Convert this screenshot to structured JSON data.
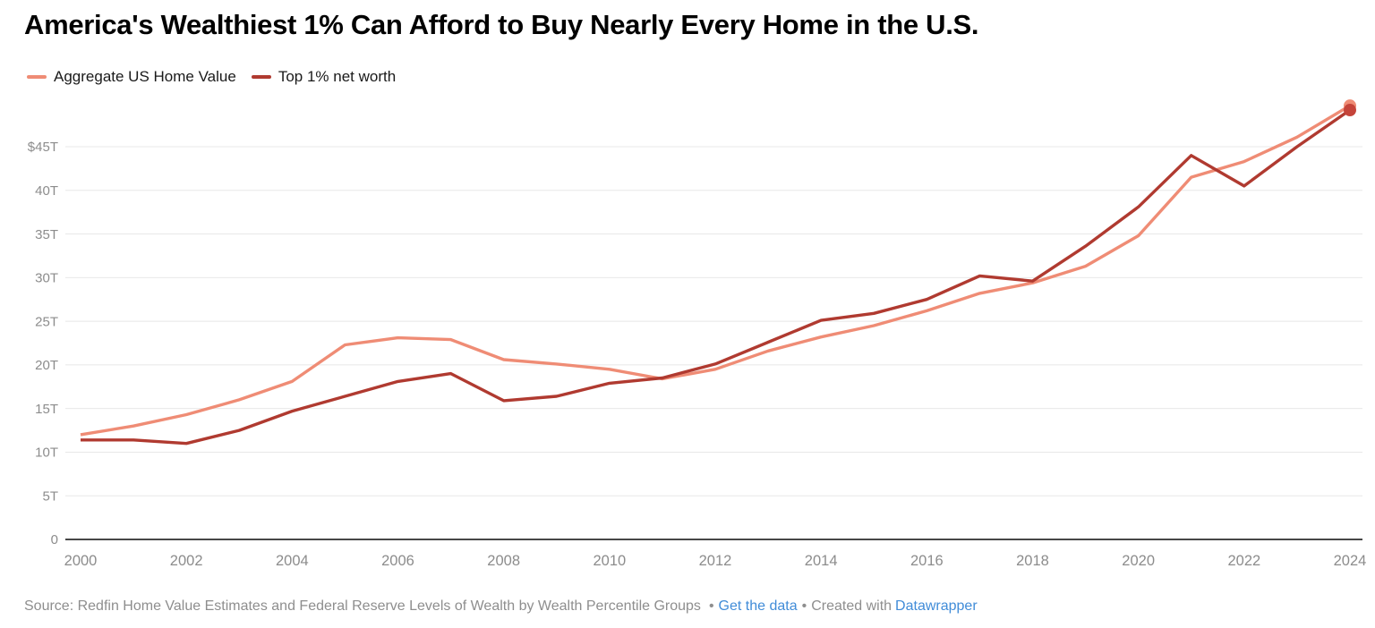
{
  "title": "America's Wealthiest 1% Can Afford to Buy Nearly Every Home in the U.S.",
  "legend": [
    {
      "label": "Aggregate US Home Value",
      "color": "#EF8C75"
    },
    {
      "label": "Top 1% net worth",
      "color": "#B03A30"
    }
  ],
  "chart_data": {
    "type": "line",
    "title": "America's Wealthiest 1% Can Afford to Buy Nearly Every Home in the U.S.",
    "xlabel": "",
    "ylabel": "",
    "x": [
      2000,
      2001,
      2002,
      2003,
      2004,
      2005,
      2006,
      2007,
      2008,
      2009,
      2010,
      2011,
      2012,
      2013,
      2014,
      2015,
      2016,
      2017,
      2018,
      2019,
      2020,
      2021,
      2022,
      2023,
      2024
    ],
    "series": [
      {
        "name": "Aggregate US Home Value",
        "color": "#EF8C75",
        "dot_color": "#EF8C75",
        "end_dot": true,
        "values": [
          12.0,
          13.0,
          14.3,
          16.0,
          18.1,
          22.3,
          23.1,
          22.9,
          20.6,
          20.1,
          19.5,
          18.4,
          19.5,
          21.6,
          23.2,
          24.5,
          26.2,
          28.2,
          29.4,
          31.3,
          34.8,
          41.5,
          43.3,
          46.1,
          49.7
        ]
      },
      {
        "name": "Top 1% net worth",
        "color": "#B03A30",
        "dot_color": "#C5443A",
        "end_dot": true,
        "values": [
          11.4,
          11.4,
          11.0,
          12.5,
          14.7,
          16.4,
          18.1,
          19.0,
          15.9,
          16.4,
          17.9,
          18.5,
          20.1,
          22.6,
          25.1,
          25.9,
          27.5,
          30.2,
          29.6,
          33.6,
          38.1,
          44.0,
          40.5,
          45.0,
          49.2
        ]
      }
    ],
    "unit": "trillion USD",
    "ylim": [
      0,
      50
    ],
    "grid": true,
    "legend_position": "top-left",
    "x_ticks": [
      2000,
      2002,
      2004,
      2006,
      2008,
      2010,
      2012,
      2014,
      2016,
      2018,
      2020,
      2022,
      2024
    ],
    "y_ticks": [
      {
        "value": 45,
        "label": "$45T"
      },
      {
        "value": 40,
        "label": "40T"
      },
      {
        "value": 35,
        "label": "35T"
      },
      {
        "value": 30,
        "label": "30T"
      },
      {
        "value": 25,
        "label": "25T"
      },
      {
        "value": 20,
        "label": "20T"
      },
      {
        "value": 15,
        "label": "15T"
      },
      {
        "value": 10,
        "label": "10T"
      },
      {
        "value": 5,
        "label": "5T"
      },
      {
        "value": 0,
        "label": "0"
      }
    ]
  },
  "footer": {
    "source_text": "Source: Redfin Home Value Estimates and Federal Reserve Levels of Wealth by Wealth Percentile Groups",
    "separator": "•",
    "separator2": "•",
    "get_data_label": "Get the data",
    "created_with": "Created with",
    "datawrapper_label": "Datawrapper"
  },
  "colors": {
    "grid": "#e8e8e8",
    "axis": "#2e2e2e",
    "tick_text": "#8c8c8c",
    "link": "#418cd8",
    "footer_text": "#8e8e8e"
  }
}
